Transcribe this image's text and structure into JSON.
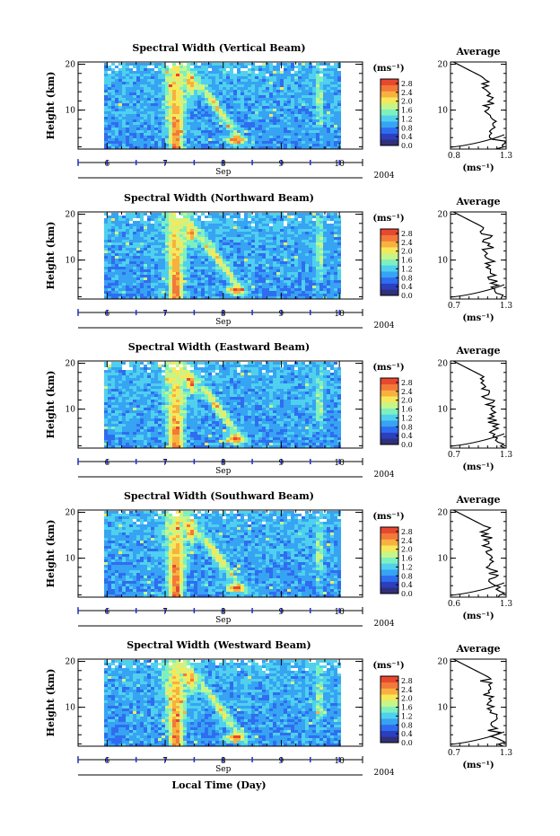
{
  "figure": {
    "xlabel": "Local Time (Day)",
    "colors": {
      "colormap": [
        "#30307a",
        "#2b3fbf",
        "#2f6df0",
        "#37a3f3",
        "#4fd0ee",
        "#7ef0c0",
        "#c6f58a",
        "#f7e85a",
        "#f8b13e",
        "#f3793a",
        "#e8482f"
      ],
      "nodata": "#ffffff"
    }
  },
  "chart_data": [
    {
      "type": "heatmap",
      "title": "Spectral Width (Vertical Beam)",
      "ylabel": "Height (km)",
      "yticks": [
        "20",
        "10"
      ],
      "ylim": [
        1.5,
        20.5
      ],
      "xticks": [
        "6",
        "7",
        "8",
        "9",
        "10"
      ],
      "xlim": [
        5.5,
        10.4
      ],
      "month_label": "Sep",
      "year_label": "2004",
      "colorbar": {
        "unit": "(ms⁻¹)",
        "ticks": [
          "2.8",
          "2.4",
          "2.0",
          "1.6",
          "1.2",
          "0.8",
          "0.4",
          "0.0"
        ],
        "range": [
          0.0,
          3.0
        ]
      },
      "average_profile": {
        "title": "Average",
        "xunit": "(ms⁻¹)",
        "xticks": [
          "0.8",
          "1.3"
        ],
        "xlim": [
          0.8,
          1.3
        ],
        "yticks": [
          "20",
          "10"
        ],
        "ylim": [
          1.5,
          20.5
        ]
      }
    },
    {
      "type": "heatmap",
      "title": "Spectral Width (Northward Beam)",
      "ylabel": "Height (km)",
      "yticks": [
        "20",
        "10"
      ],
      "ylim": [
        1.5,
        20.5
      ],
      "xticks": [
        "6",
        "7",
        "8",
        "9",
        "10"
      ],
      "xlim": [
        5.5,
        10.4
      ],
      "month_label": "Sep",
      "year_label": "2004",
      "colorbar": {
        "unit": "(ms⁻¹)",
        "ticks": [
          "2.8",
          "2.4",
          "2.0",
          "1.6",
          "1.2",
          "0.8",
          "0.4",
          "0.0"
        ],
        "range": [
          0.0,
          3.0
        ]
      },
      "average_profile": {
        "title": "Average",
        "xunit": "(ms⁻¹)",
        "xticks": [
          "0.7",
          "1.3"
        ],
        "xlim": [
          0.7,
          1.3
        ],
        "yticks": [
          "20",
          "10"
        ],
        "ylim": [
          1.5,
          20.5
        ]
      }
    },
    {
      "type": "heatmap",
      "title": "Spectral Width (Eastward Beam)",
      "ylabel": "Height (km)",
      "yticks": [
        "20",
        "10"
      ],
      "ylim": [
        1.5,
        20.5
      ],
      "xticks": [
        "6",
        "7",
        "8",
        "9",
        "10"
      ],
      "xlim": [
        5.5,
        10.4
      ],
      "month_label": "Sep",
      "year_label": "2004",
      "colorbar": {
        "unit": "(ms⁻¹)",
        "ticks": [
          "2.8",
          "2.4",
          "2.0",
          "1.6",
          "1.2",
          "0.8",
          "0.4",
          "0.0"
        ],
        "range": [
          0.0,
          3.0
        ]
      },
      "average_profile": {
        "title": "Average",
        "xunit": "(ms⁻¹)",
        "xticks": [
          "0.7",
          "1.3"
        ],
        "xlim": [
          0.7,
          1.3
        ],
        "yticks": [
          "20",
          "10"
        ],
        "ylim": [
          1.5,
          20.5
        ]
      }
    },
    {
      "type": "heatmap",
      "title": "Spectral Width (Southward Beam)",
      "ylabel": "Height (km)",
      "yticks": [
        "20",
        "10"
      ],
      "ylim": [
        1.5,
        20.5
      ],
      "xticks": [
        "6",
        "7",
        "8",
        "9",
        "10"
      ],
      "xlim": [
        5.5,
        10.4
      ],
      "month_label": "Sep",
      "year_label": "2004",
      "colorbar": {
        "unit": "(ms⁻¹)",
        "ticks": [
          "2.8",
          "2.4",
          "2.0",
          "1.6",
          "1.2",
          "0.8",
          "0.4",
          "0.0"
        ],
        "range": [
          0.0,
          3.0
        ]
      },
      "average_profile": {
        "title": "Average",
        "xunit": "(ms⁻¹)",
        "xticks": [
          "0.6",
          "1.3"
        ],
        "xlim": [
          0.6,
          1.3
        ],
        "yticks": [
          "20",
          "10"
        ],
        "ylim": [
          1.5,
          20.5
        ]
      }
    },
    {
      "type": "heatmap",
      "title": "Spectral Width (Westward Beam)",
      "ylabel": "Height (km)",
      "yticks": [
        "20",
        "10"
      ],
      "ylim": [
        1.5,
        20.5
      ],
      "xticks": [
        "6",
        "7",
        "8",
        "9",
        "10"
      ],
      "xlim": [
        5.5,
        10.4
      ],
      "month_label": "Sep",
      "year_label": "2004",
      "colorbar": {
        "unit": "(ms⁻¹)",
        "ticks": [
          "2.8",
          "2.4",
          "2.0",
          "1.6",
          "1.2",
          "0.8",
          "0.4",
          "0.0"
        ],
        "range": [
          0.0,
          3.0
        ]
      },
      "average_profile": {
        "title": "Average",
        "xunit": "(ms⁻¹)",
        "xticks": [
          "0.7",
          "1.3"
        ],
        "xlim": [
          0.7,
          1.3
        ],
        "yticks": [
          "20",
          "10"
        ],
        "ylim": [
          1.5,
          20.5
        ]
      }
    }
  ]
}
